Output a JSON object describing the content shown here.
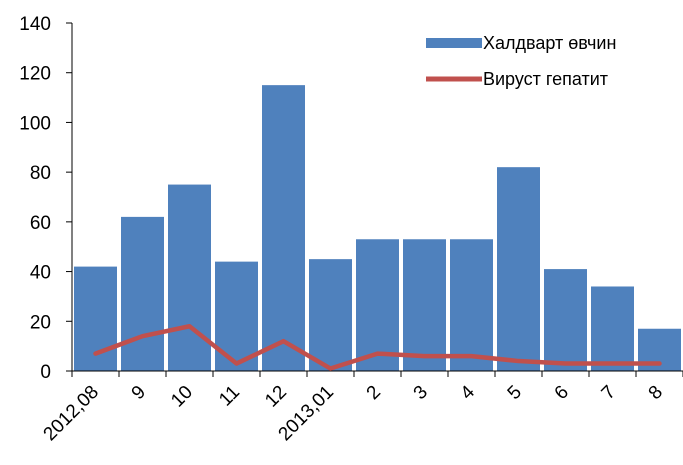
{
  "chart_data": {
    "type": "bar",
    "categories": [
      "2012,08",
      "9",
      "10",
      "11",
      "12",
      "2013,01",
      "2",
      "3",
      "4",
      "5",
      "6",
      "7",
      "8"
    ],
    "series": [
      {
        "name": "Халдварт өвчин",
        "type": "bar",
        "color": "#4f81bd",
        "values": [
          42,
          62,
          75,
          44,
          115,
          45,
          53,
          53,
          53,
          82,
          41,
          34,
          17
        ]
      },
      {
        "name": "Вируст гепатит",
        "type": "line",
        "color": "#c0504d",
        "values": [
          7,
          14,
          18,
          3,
          12,
          1,
          7,
          6,
          6,
          4,
          3,
          3,
          3
        ]
      }
    ],
    "title": "",
    "xlabel": "",
    "ylabel": "",
    "ylim": [
      0,
      140
    ],
    "yticks": [
      0,
      20,
      40,
      60,
      80,
      100,
      120,
      140
    ],
    "grid": false,
    "legend_position": "top-right"
  }
}
